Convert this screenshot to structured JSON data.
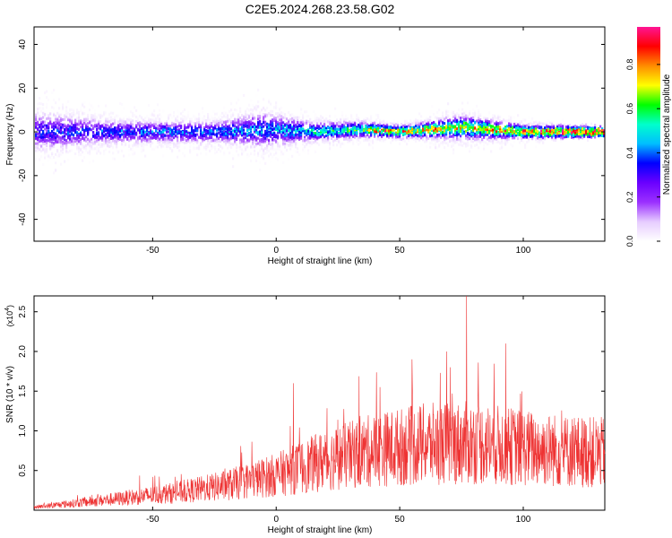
{
  "title": "C2E5.2024.268.23.58.G02",
  "chart_data": [
    {
      "type": "heatmap",
      "xlabel": "Height of straight line (km)",
      "ylabel": "Frequency (Hz)",
      "xlim": [
        -98,
        133
      ],
      "ylim": [
        -50,
        48
      ],
      "x_ticks": [
        -50,
        0,
        50,
        100
      ],
      "y_ticks": [
        -40,
        -20,
        0,
        20,
        40
      ],
      "colorbar": {
        "label": "Normalized spectral amplitude",
        "range": [
          0.0,
          0.97
        ],
        "ticks": [
          0.0,
          0.2,
          0.4,
          0.6,
          0.8
        ],
        "colormap": [
          "#ffffff",
          "#e6ccff",
          "#9b30ff",
          "#6a00ff",
          "#0000ff",
          "#00bfff",
          "#00ffcc",
          "#00ff00",
          "#ffff00",
          "#ff8c00",
          "#ff0000",
          "#ff1493"
        ]
      },
      "band": [
        {
          "x": -95,
          "center": 0,
          "spread": 14
        },
        {
          "x": -70,
          "center": 0,
          "spread": 9
        },
        {
          "x": -50,
          "center": 0,
          "spread": 8
        },
        {
          "x": -25,
          "center": 0,
          "spread": 8
        },
        {
          "x": -5,
          "center": 1,
          "spread": 13
        },
        {
          "x": 15,
          "center": 0,
          "spread": 7
        },
        {
          "x": 35,
          "center": 1,
          "spread": 6
        },
        {
          "x": 50,
          "center": 0,
          "spread": 4
        },
        {
          "x": 75,
          "center": 2,
          "spread": 9
        },
        {
          "x": 100,
          "center": 0,
          "spread": 5
        },
        {
          "x": 133,
          "center": 0,
          "spread": 2
        }
      ],
      "peak_amplitude": [
        {
          "x": -95,
          "value": 0.35
        },
        {
          "x": 0,
          "value": 0.45
        },
        {
          "x": 35,
          "value": 0.65
        },
        {
          "x": 40,
          "value": 0.85
        },
        {
          "x": 60,
          "value": 0.8
        },
        {
          "x": 80,
          "value": 0.75
        },
        {
          "x": 100,
          "value": 0.9
        },
        {
          "x": 133,
          "value": 0.95
        }
      ]
    },
    {
      "type": "line",
      "xlabel": "Height of straight line (km)",
      "ylabel": "SNR (10 * v/v)",
      "y_multiplier": "(x10",
      "y_multiplier_exp": "4",
      "y_multiplier_close": ")",
      "xlim": [
        -98,
        133
      ],
      "ylim": [
        0,
        2.7
      ],
      "x_ticks": [
        -50,
        0,
        50,
        100
      ],
      "y_ticks": [
        0.5,
        1.0,
        1.5,
        2.0,
        2.5
      ],
      "y_tick_labels": [
        "0.5",
        "1.0",
        "1.5",
        "2.0",
        "2.5"
      ],
      "color": "#ee3333",
      "trend": [
        {
          "x": -98,
          "y": 0.04
        },
        {
          "x": -80,
          "y": 0.1
        },
        {
          "x": -60,
          "y": 0.17
        },
        {
          "x": -40,
          "y": 0.24
        },
        {
          "x": -20,
          "y": 0.34
        },
        {
          "x": 0,
          "y": 0.48
        },
        {
          "x": 20,
          "y": 0.68
        },
        {
          "x": 40,
          "y": 0.82
        },
        {
          "x": 60,
          "y": 0.9
        },
        {
          "x": 80,
          "y": 0.92
        },
        {
          "x": 100,
          "y": 0.85
        },
        {
          "x": 120,
          "y": 0.8
        },
        {
          "x": 133,
          "y": 0.78
        }
      ],
      "spikes": [
        {
          "x": 77,
          "y": 2.7
        },
        {
          "x": 93,
          "y": 2.1
        },
        {
          "x": 69,
          "y": 2.0
        },
        {
          "x": 55,
          "y": 1.9
        },
        {
          "x": 42,
          "y": 1.55
        },
        {
          "x": 7,
          "y": 1.6
        }
      ]
    }
  ]
}
